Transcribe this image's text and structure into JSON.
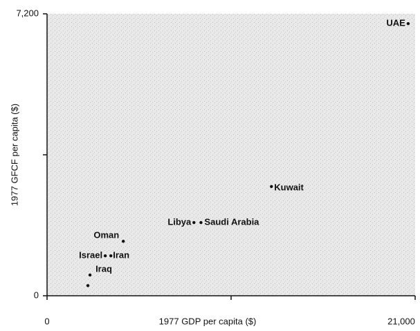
{
  "chart_data": {
    "type": "scatter",
    "x_label": "1977 GDP per capita ($)",
    "y_label": "1977 GFCF per capita ($)",
    "xlim": [
      0,
      21000
    ],
    "ylim": [
      0,
      7200
    ],
    "xticks": [
      0,
      {
        "value": 10500,
        "label": null
      },
      {
        "value": 21000,
        "label": "21,000"
      }
    ],
    "yticks": [
      0,
      {
        "value": 3600,
        "label": null
      },
      {
        "value": 7200,
        "label": "7,200"
      }
    ],
    "color": "#111111",
    "series": [
      {
        "name": null,
        "labels": [
          "UAE",
          "Kuwait",
          "Libya",
          "Saudi Arabia",
          "Oman",
          "Israel",
          "Iran",
          "Iraq",
          null
        ],
        "x": [
          20600,
          12800,
          8380,
          8780,
          4350,
          3320,
          3640,
          2450,
          2330
        ],
        "values": [
          6950,
          2790,
          1870,
          1870,
          1390,
          1020,
          1020,
          530,
          260
        ]
      }
    ]
  }
}
